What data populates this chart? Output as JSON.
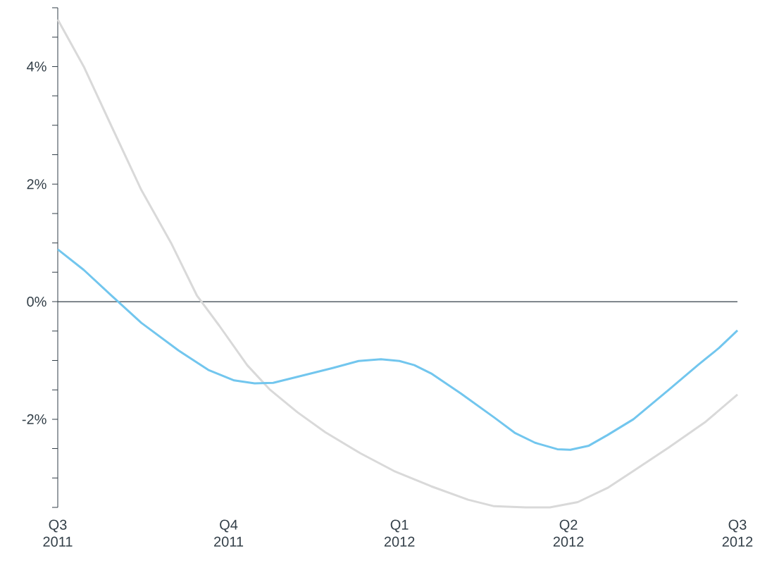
{
  "chart_data": {
    "type": "line",
    "x": [
      "2011-07-01",
      "2011-07-15",
      "2011-07-30",
      "2011-08-15",
      "2011-08-31",
      "2011-09-14",
      "2011-09-26",
      "2011-10-11",
      "2011-10-23",
      "2011-11-07",
      "2011-11-22",
      "2011-12-11",
      "2011-12-29",
      "2012-01-18",
      "2012-02-07",
      "2012-02-21",
      "2012-03-09",
      "2012-03-22",
      "2012-04-06",
      "2012-04-22",
      "2012-05-06",
      "2012-05-25",
      "2012-06-14",
      "2012-07-01"
    ],
    "series": [
      {
        "color": "#d9d9d9",
        "values": [
          4.8,
          4.0,
          2.98,
          1.9,
          1.0,
          0.1,
          -0.41,
          -1.08,
          -1.49,
          -1.88,
          -2.22,
          -2.58,
          -2.88,
          -3.14,
          -3.37,
          -3.48,
          -3.5,
          -3.5,
          -3.41,
          -3.17,
          -2.88,
          -2.48,
          -2.04,
          -1.58
        ]
      },
      {
        "color": "#72c6ee",
        "x": [
          "2011-07-01",
          "2011-07-15",
          "2011-07-30",
          "2011-08-15",
          "2011-09-04",
          "2011-09-20",
          "2011-10-04",
          "2011-10-15",
          "2011-10-25",
          "2011-11-07",
          "2011-11-26",
          "2011-12-10",
          "2011-12-22",
          "2012-01-01",
          "2012-01-09",
          "2012-01-18",
          "2012-02-03",
          "2012-02-21",
          "2012-03-03",
          "2012-03-14",
          "2012-03-26",
          "2012-04-02",
          "2012-04-12",
          "2012-04-22",
          "2012-05-06",
          "2012-05-25",
          "2012-06-10",
          "2012-06-21",
          "2012-07-01"
        ],
        "values": [
          0.89,
          0.54,
          0.1,
          -0.36,
          -0.83,
          -1.16,
          -1.34,
          -1.39,
          -1.38,
          -1.28,
          -1.13,
          -1.01,
          -0.98,
          -1.01,
          -1.08,
          -1.22,
          -1.56,
          -1.97,
          -2.23,
          -2.4,
          -2.51,
          -2.52,
          -2.45,
          -2.27,
          -2.0,
          -1.5,
          -1.07,
          -0.79,
          -0.49
        ]
      }
    ],
    "xlim": [
      "2011-07-01",
      "2012-07-01"
    ],
    "xticks": [
      {
        "value": "2011-07-01",
        "label": "Q3 2011"
      },
      {
        "value": "2011-10-01",
        "label": "Q4 2011"
      },
      {
        "value": "2012-01-01",
        "label": "Q1 2012"
      },
      {
        "value": "2012-04-01",
        "label": "Q2 2012"
      },
      {
        "value": "2012-07-01",
        "label": "Q3 2012"
      }
    ],
    "ylim": [
      -3.5,
      5
    ],
    "yticks": [
      {
        "value": -3.5,
        "label": null
      },
      {
        "value": -3,
        "label": null
      },
      {
        "value": -2.5,
        "label": null
      },
      {
        "value": -2,
        "label": "-2%"
      },
      {
        "value": -1.5,
        "label": null
      },
      {
        "value": -1,
        "label": null
      },
      {
        "value": -0.5,
        "label": null
      },
      {
        "value": 0,
        "label": "0%"
      },
      {
        "value": 0.5,
        "label": null
      },
      {
        "value": 1,
        "label": null
      },
      {
        "value": 1.5,
        "label": null
      },
      {
        "value": 2,
        "label": "2%"
      },
      {
        "value": 2.5,
        "label": null
      },
      {
        "value": 3,
        "label": null
      },
      {
        "value": 3.5,
        "label": null
      },
      {
        "value": 4,
        "label": "4%"
      },
      {
        "value": 4.5,
        "label": null
      },
      {
        "value": 5,
        "label": null
      }
    ],
    "ref_lines": [
      {
        "axis": "y",
        "value": 0,
        "color": "#333f48"
      }
    ],
    "marker": "none",
    "line_style": "solid"
  }
}
